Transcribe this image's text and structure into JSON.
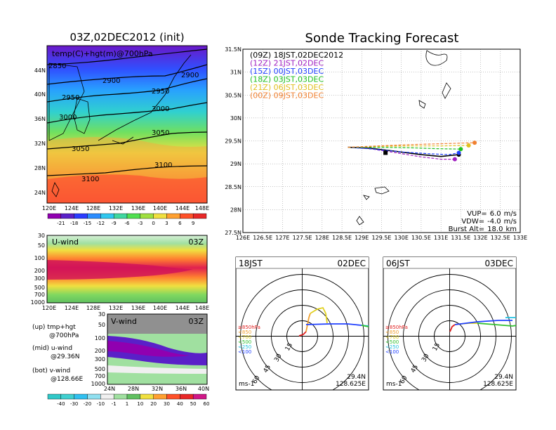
{
  "colors": {
    "track_09z": "#000000",
    "track_12z": "#a020c0",
    "track_15z": "#2040ff",
    "track_18z": "#20c020",
    "track_21z": "#e0c020",
    "track_00z": "#f08030",
    "u_palette": [
      "#9000b0",
      "#5a20c8",
      "#2a3cff",
      "#2a8cff",
      "#30c8f0",
      "#40d8a0",
      "#50e050",
      "#a0e040",
      "#f0e040",
      "#ffa030",
      "#ff5028",
      "#e82828"
    ],
    "v_palette": [
      "#30c8c8",
      "#40d0d0",
      "#30c0f0",
      "#90e0f0",
      "#f0f0f0",
      "#a0e0a0",
      "#60c060",
      "#f0e040",
      "#ffa030",
      "#ff5028",
      "#e82828",
      "#d01888"
    ]
  },
  "left": {
    "top_title": "03Z,02DEC2012 (init)",
    "map_label": "temp(C)+hgt(m)@700hPa",
    "lat_ticks": [
      "44N",
      "40N",
      "36N",
      "32N",
      "28N",
      "24N"
    ],
    "lon_ticks": [
      "120E",
      "124E",
      "128E",
      "132E",
      "136E",
      "140E",
      "144E",
      "148E"
    ],
    "contours": [
      "2850",
      "2900",
      "2900",
      "2950",
      "2950",
      "3000",
      "3000",
      "3050",
      "3050",
      "3100",
      "3100"
    ],
    "colorbar1_labels": [
      "-21",
      "-18",
      "-15",
      "-12",
      "-9",
      "-6",
      "-3",
      "0",
      "3",
      "6",
      "9"
    ],
    "u_title": "U-wind",
    "u_time": "03Z",
    "p_ticks": [
      "30",
      "50",
      "100",
      "200",
      "300",
      "500",
      "700",
      "1000"
    ],
    "u_lon_ticks": [
      "120E",
      "124E",
      "128E",
      "132E",
      "136E",
      "140E",
      "144E",
      "148E"
    ],
    "v_title": "V-wind",
    "v_time": "03Z",
    "v_p_ticks": [
      "30",
      "50",
      "100",
      "200",
      "300",
      "500",
      "700",
      "1000"
    ],
    "v_lat_ticks": [
      "24N",
      "28N",
      "32N",
      "36N",
      "40N"
    ],
    "colorbar2_labels": [
      "-40",
      "-30",
      "-20",
      "-10",
      "-1",
      "1",
      "10",
      "20",
      "30",
      "40",
      "50",
      "60"
    ],
    "legend": [
      {
        "line1": "(up) tmp+hgt",
        "line2": "@700hPa"
      },
      {
        "line1": "(mid) u-wind",
        "line2": "@29.36N"
      },
      {
        "line1": "(bot) v-wind",
        "line2": "@128.66E"
      }
    ]
  },
  "forecast": {
    "title": "Sonde Tracking Forecast",
    "legend": [
      {
        "text": "(09Z) 18JST,02DEC2012",
        "color_key": "track_09z"
      },
      {
        "text": "(12Z) 21JST,02DEC",
        "color_key": "track_12z"
      },
      {
        "text": "(15Z) 00JST,03DEC",
        "color_key": "track_15z"
      },
      {
        "text": "(18Z) 03JST,03DEC",
        "color_key": "track_18z"
      },
      {
        "text": "(21Z) 06JST,03DEC",
        "color_key": "track_21z"
      },
      {
        "text": "(00Z) 09JST,03DEC",
        "color_key": "track_00z"
      }
    ],
    "lat_ticks": [
      "31.5N",
      "31N",
      "30.5N",
      "30N",
      "29.5N",
      "29N",
      "28.5N",
      "28N",
      "27.5N"
    ],
    "lon_ticks": [
      "126E",
      "126.5E",
      "127E",
      "127.5E",
      "128E",
      "128.5E",
      "129E",
      "129.5E",
      "130E",
      "130.5E",
      "131E",
      "131.5E",
      "132E",
      "132.5E",
      "133E"
    ],
    "params": [
      {
        "label": "VUP=",
        "value": "6.0",
        "unit": "m/s"
      },
      {
        "label": "VDW=",
        "value": "-4.0",
        "unit": "m/s"
      },
      {
        "label": "Burst Alt=",
        "value": "18.0",
        "unit": "km"
      }
    ]
  },
  "hodo_left": {
    "time": "18JST",
    "date": "02DEC",
    "ring_labels": [
      "15",
      "30",
      "45",
      "60"
    ],
    "levels": [
      {
        "text": "≥850hPa",
        "color": "#e02020"
      },
      {
        "text": "<850",
        "color": "#f0a030"
      },
      {
        "text": "<700",
        "color": "#e0d020"
      },
      {
        "text": "<500",
        "color": "#30c030"
      },
      {
        "text": "<250",
        "color": "#20c0e0"
      },
      {
        "text": "<100",
        "color": "#2040ff"
      }
    ],
    "unit": "ms-1",
    "lat": "29.4N",
    "lon": "128.625E"
  },
  "hodo_right": {
    "time": "06JST",
    "date": "03DEC",
    "ring_labels": [
      "15",
      "30",
      "45",
      "60"
    ],
    "levels": [
      {
        "text": "≥850hPa",
        "color": "#e02020"
      },
      {
        "text": "<850",
        "color": "#f0a030"
      },
      {
        "text": "<700",
        "color": "#e0d020"
      },
      {
        "text": "<500",
        "color": "#30c030"
      },
      {
        "text": "<250",
        "color": "#20c0e0"
      },
      {
        "text": "<100",
        "color": "#2040ff"
      }
    ],
    "unit": "ms-1",
    "lat": "29.4N",
    "lon": "128.625E"
  },
  "chart_data": [
    {
      "type": "line",
      "title": "Sonde Tracking Forecast",
      "xlabel": "",
      "ylabel": "",
      "xlim": [
        126,
        133
      ],
      "ylim": [
        27.5,
        31.5
      ],
      "series": [
        {
          "name": "(09Z) 18JST,02DEC2012",
          "x": [
            128.65,
            129.2,
            129.8,
            130.5,
            131.0,
            131.45
          ],
          "y": [
            29.36,
            29.34,
            29.28,
            29.2,
            29.16,
            29.2
          ]
        },
        {
          "name": "(12Z) 21JST,02DEC",
          "x": [
            128.65,
            129.2,
            129.8,
            130.5,
            131.0,
            131.35
          ],
          "y": [
            29.36,
            29.33,
            29.25,
            29.15,
            29.1,
            29.1
          ]
        },
        {
          "name": "(15Z) 00JST,03DEC",
          "x": [
            128.65,
            129.3,
            130.0,
            130.7,
            131.2,
            131.45
          ],
          "y": [
            29.36,
            29.32,
            29.26,
            29.22,
            29.2,
            29.24
          ]
        },
        {
          "name": "(18Z) 03JST,03DEC",
          "x": [
            128.65,
            129.4,
            130.2,
            130.9,
            131.5
          ],
          "y": [
            29.36,
            29.36,
            29.35,
            29.33,
            29.32
          ]
        },
        {
          "name": "(21Z) 06JST,03DEC",
          "x": [
            128.65,
            129.4,
            130.2,
            131.0,
            131.7
          ],
          "y": [
            29.36,
            29.38,
            29.39,
            29.39,
            29.4
          ]
        },
        {
          "name": "(00Z) 09JST,03DEC",
          "x": [
            128.65,
            129.4,
            130.3,
            131.1,
            131.85
          ],
          "y": [
            29.36,
            29.39,
            29.42,
            29.44,
            29.46
          ]
        }
      ]
    }
  ]
}
